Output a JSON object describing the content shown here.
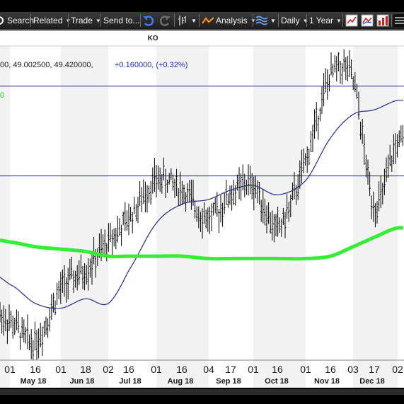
{
  "toolbar": {
    "search_label": "Search",
    "related_label": "Related",
    "trade_label": "Trade",
    "send_label": "Send to...",
    "analysis_label": "Analysis",
    "period_label": "Daily",
    "range_label": "1 Year"
  },
  "chart": {
    "symbol": "KO",
    "ohlc_text": "00, 49.002500, 49.420000,",
    "change_text": "+0.160000, (+0.32%)",
    "green_label": "0",
    "x_day_ticks": [
      "01",
      "16",
      "01",
      "18",
      "02",
      "16",
      "01",
      "16",
      "04",
      "17",
      "01",
      "16",
      "01",
      "16",
      "03",
      "17",
      "02"
    ],
    "x_month_labels": [
      "May 18",
      "Jun 18",
      "Jul 18",
      "Aug 18",
      "Sep 18",
      "Oct 18",
      "Nov 18",
      "Dec 18"
    ],
    "colors": {
      "band_light": "#ffffff",
      "band_dark": "#f2f2f2",
      "bars": "#000000",
      "sma_50": "#1f2a8c",
      "sma_200": "#33ee33",
      "hlines": "#1f2a8c"
    }
  },
  "chart_data": {
    "type": "line",
    "title": "KO",
    "period": "Daily",
    "range": "1 Year",
    "price_range": [
      44.8,
      51.3
    ],
    "price_lines": [
      50.6,
      48.7
    ],
    "x": [
      "May 01",
      "May 16",
      "Jun 01",
      "Jun 18",
      "Jul 02",
      "Jul 16",
      "Aug 01",
      "Aug 16",
      "Sep 04",
      "Sep 17",
      "Oct 01",
      "Oct 16",
      "Nov 01",
      "Nov 16",
      "Dec 03",
      "Dec 17",
      "Jan 02"
    ],
    "series": [
      {
        "values": [
          45.6,
          45.2,
          46.3,
          46.7,
          47.3,
          47.8,
          48.6,
          48.4,
          47.8,
          48.3,
          48.5,
          47.6,
          49.0,
          50.8,
          50.7,
          48.1,
          49.4
        ]
      },
      {
        "values": [
          46.4,
          46.0,
          45.9,
          46.1,
          46.0,
          46.7,
          47.7,
          48.1,
          48.2,
          48.4,
          48.5,
          48.3,
          48.6,
          49.5,
          50.0,
          50.1,
          50.3
        ]
      },
      {
        "values": [
          47.3,
          47.2,
          47.15,
          47.1,
          47.0,
          47.0,
          47.0,
          47.0,
          46.95,
          46.95,
          46.95,
          46.95,
          46.95,
          47.0,
          47.2,
          47.4,
          47.6
        ]
      }
    ]
  }
}
